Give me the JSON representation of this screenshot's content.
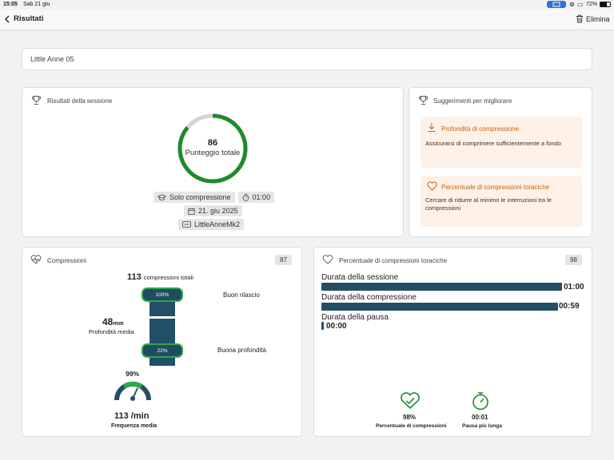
{
  "status_bar": {
    "time": "15:05",
    "date": "Sab 21 giu",
    "battery": "72%"
  },
  "nav": {
    "back_label": "Risultati",
    "delete_label": "Elimina"
  },
  "session": {
    "name": "Little Anne 05"
  },
  "results": {
    "title": "Risultati della sessione",
    "score": "86",
    "score_label": "Punteggio totale",
    "score_value": 86,
    "mode": "Solo compressione",
    "duration": "01:00",
    "date": "21. giu 2025",
    "device": "LittleAnneMk2"
  },
  "tips": {
    "title": "Suggerimenti per migliorare",
    "items": [
      {
        "title": "Profondità di compressione",
        "text": "Assicurarsi di comprimere sufficientemente a fondo"
      },
      {
        "title": "Percentuale di compressioni toraciche",
        "text": "Cercare di ridurre al minimo le interruzioni tra le compressioni"
      }
    ]
  },
  "compressions": {
    "title": "Compressioni",
    "badge": "87",
    "total_value": "113",
    "total_label": "compressioni totali",
    "release_pct": "100%",
    "release_label": "Buon rilascio",
    "depth_value": "48",
    "depth_unit": "mm",
    "depth_label": "Profondità media",
    "depth_pct": "22%",
    "depth_good_label": "Buona profondità",
    "rate_pct": "99%",
    "rate_value": "113 /min",
    "rate_label": "Frequenza media"
  },
  "ccf": {
    "title": "Percentuale di compressioni toraciche",
    "badge": "98",
    "bars": [
      {
        "label": "Durata della sessione",
        "value": "01:00",
        "fraction": 1.0
      },
      {
        "label": "Durata della compressione",
        "value": "00:59",
        "fraction": 0.983
      },
      {
        "label": "Durata della pausa",
        "value": "00:00",
        "fraction": 0.01
      }
    ],
    "stats": [
      {
        "value": "98%",
        "label": "Percentuale di compressioni"
      },
      {
        "value": "00:01",
        "label": "Pausa più lunga"
      }
    ]
  },
  "colors": {
    "accent_green": "#1e8a2e",
    "bar_navy": "#224f66",
    "tip_orange": "#c8620f"
  }
}
